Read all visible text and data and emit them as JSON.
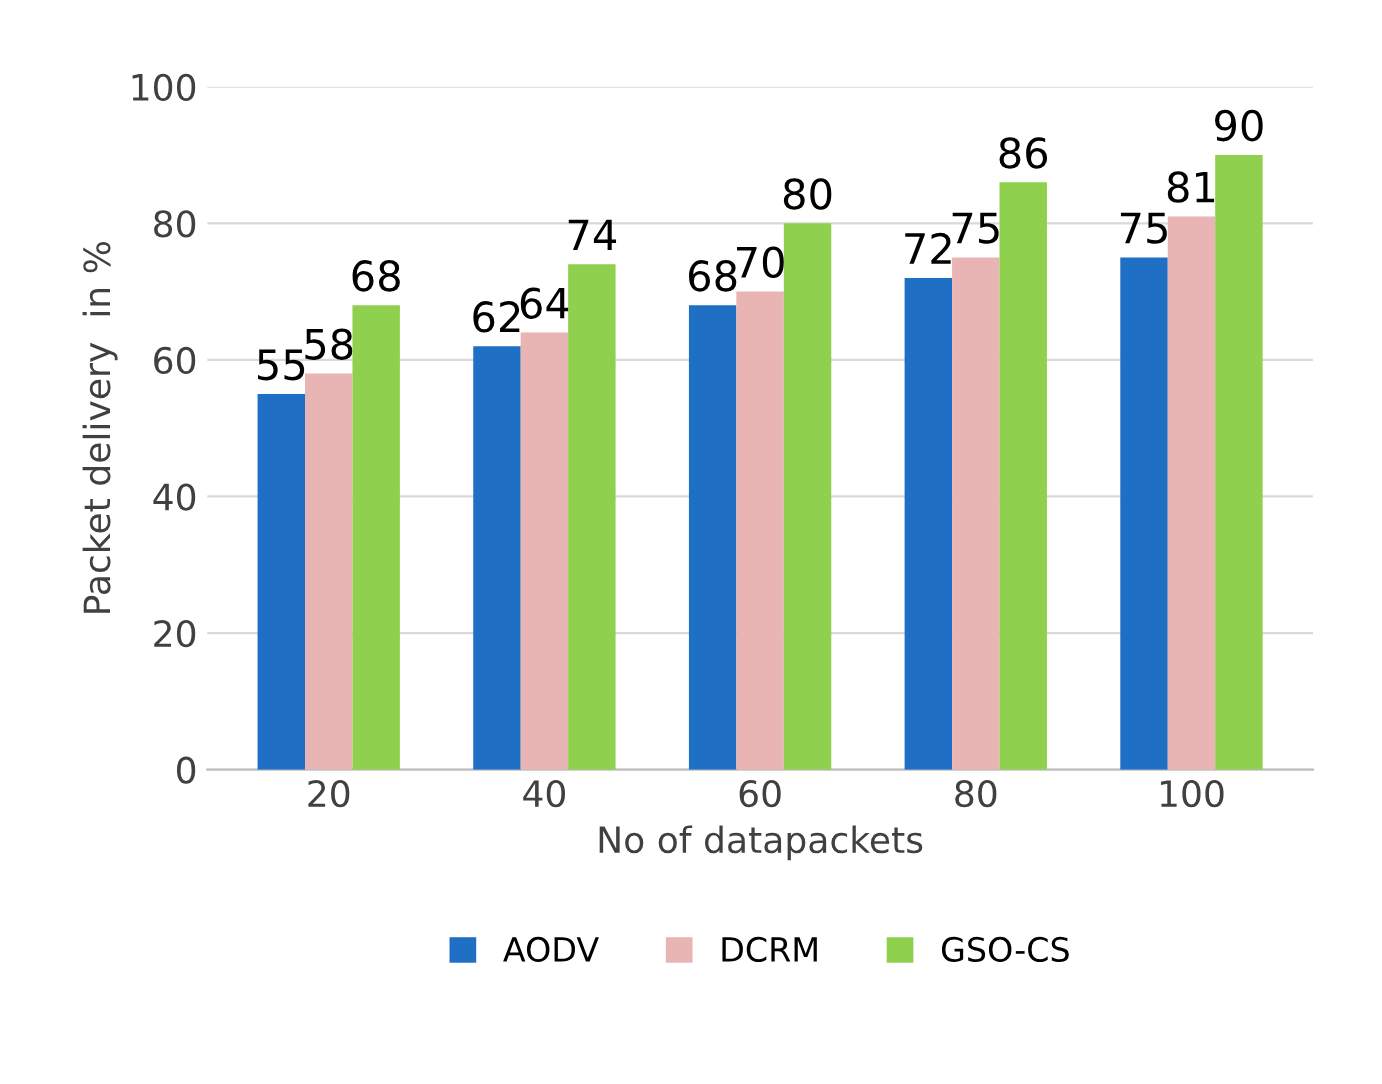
{
  "chart_data": {
    "type": "bar",
    "xlabel": "No of datapackets",
    "ylabel": "Packet delivery  in %",
    "categories": [
      "20",
      "40",
      "60",
      "80",
      "100"
    ],
    "series": [
      {
        "name": "AODV",
        "color": "#1f6fc4",
        "values": [
          55,
          62,
          68,
          72,
          75
        ]
      },
      {
        "name": "DCRM",
        "color": "#e8b4b4",
        "values": [
          58,
          64,
          70,
          75,
          81
        ]
      },
      {
        "name": "GSO-CS",
        "color": "#8fd14f",
        "values": [
          68,
          74,
          80,
          86,
          90
        ]
      }
    ],
    "ylim": [
      0,
      100
    ],
    "yticks": [
      0,
      20,
      40,
      60,
      80,
      100
    ],
    "grid": "y",
    "legend": "bottom",
    "data_labels": true
  }
}
